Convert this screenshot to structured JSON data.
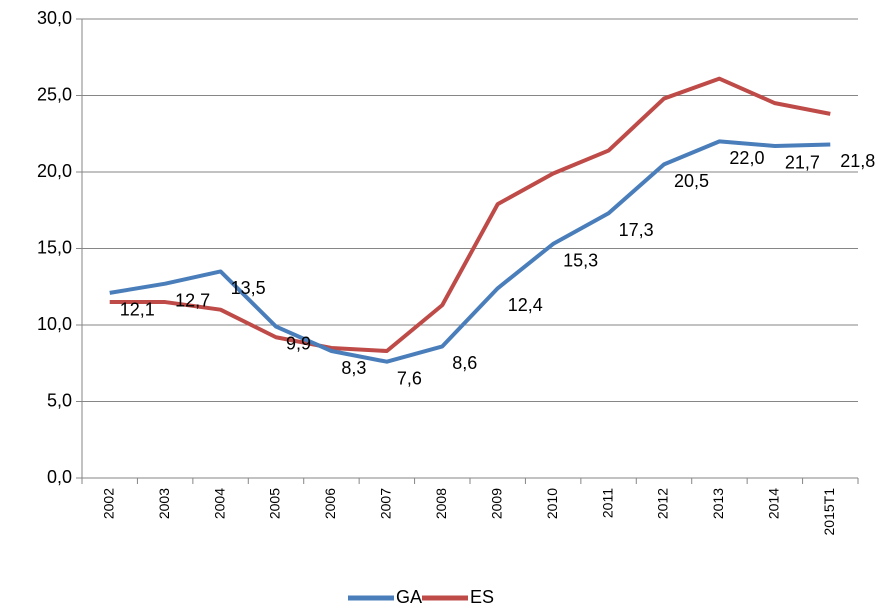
{
  "chart_data": {
    "type": "line",
    "categories": [
      "2002",
      "2003",
      "2004",
      "2005",
      "2006",
      "2007",
      "2008",
      "2009",
      "2010",
      "2011",
      "2012",
      "2013",
      "2014",
      "2015T1"
    ],
    "series": [
      {
        "name": "GA",
        "color": "#4a7ebb",
        "values": [
          12.1,
          12.7,
          13.5,
          9.9,
          8.3,
          7.6,
          8.6,
          12.4,
          15.3,
          17.3,
          20.5,
          22.0,
          21.7,
          21.8
        ],
        "value_labels": [
          "12,1",
          "12,7",
          "13,5",
          "9,9",
          "8,3",
          "7,6",
          "8,6",
          "12,4",
          "15,3",
          "17,3",
          "20,5",
          "22,0",
          "21,7",
          "21,8"
        ]
      },
      {
        "name": "ES",
        "color": "#be4b48",
        "values": [
          11.5,
          11.5,
          11.0,
          9.2,
          8.5,
          8.3,
          11.3,
          17.9,
          19.9,
          21.4,
          24.8,
          26.1,
          24.5,
          23.8
        ]
      }
    ],
    "ylim": [
      0,
      30
    ],
    "yticks": [
      {
        "value": 0,
        "label": "0,0"
      },
      {
        "value": 5,
        "label": "5,0"
      },
      {
        "value": 10,
        "label": "10,0"
      },
      {
        "value": 15,
        "label": "15,0"
      },
      {
        "value": 20,
        "label": "20,0"
      },
      {
        "value": 25,
        "label": "25,0"
      },
      {
        "value": 30,
        "label": "30,0"
      }
    ],
    "grid": true,
    "legend": "bottom"
  }
}
